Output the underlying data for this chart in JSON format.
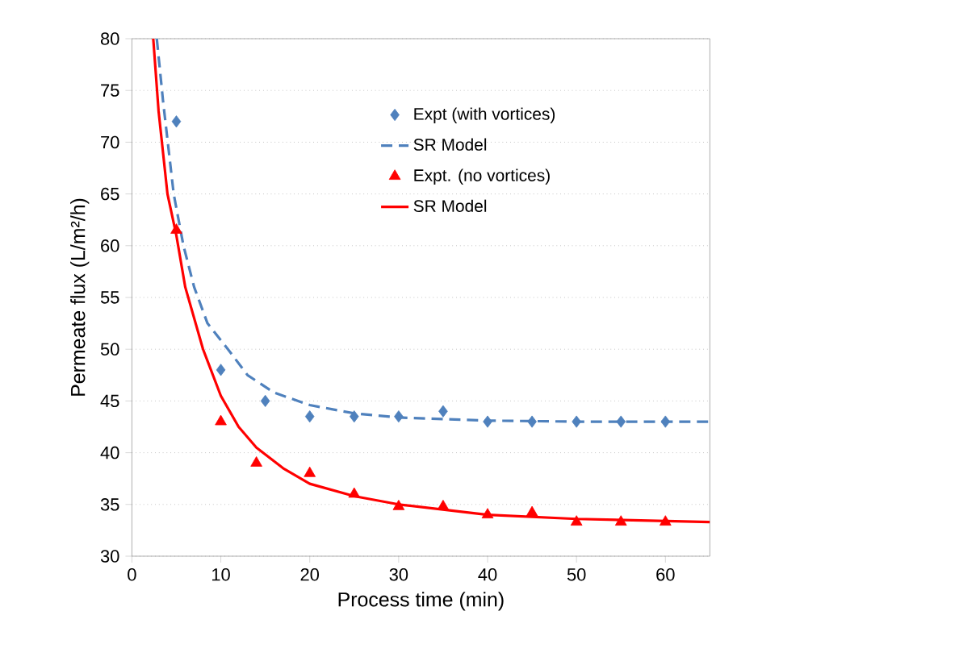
{
  "chart_data": {
    "type": "line",
    "xlabel": "Process time (min)",
    "ylabel": "Permeate flux (L/m²/h)",
    "xlim": [
      0,
      65
    ],
    "ylim": [
      30,
      80
    ],
    "xticks": [
      0,
      10,
      20,
      30,
      40,
      50,
      60
    ],
    "yticks": [
      30,
      35,
      40,
      45,
      50,
      55,
      60,
      65,
      70,
      75,
      80
    ],
    "grid": "y",
    "legend": "top right",
    "series": [
      {
        "name": "Expt (with vortices)",
        "type": "scatter",
        "marker": "diamond",
        "color": "#4f81bd",
        "x": [
          5,
          10,
          15,
          20,
          25,
          30,
          35,
          40,
          45,
          50,
          55,
          60
        ],
        "values": [
          72,
          48,
          45,
          43.5,
          43.5,
          43.5,
          44,
          43,
          43,
          43,
          43,
          43
        ]
      },
      {
        "name": "SR Model",
        "line_style": "dashed",
        "color": "#4f81bd",
        "x": [
          2.8,
          3.5,
          4.7,
          5.8,
          7,
          8.5,
          10.8,
          13,
          16,
          20,
          25,
          30,
          40,
          50,
          65
        ],
        "values": [
          80,
          74,
          65,
          60,
          56,
          52.5,
          50,
          47.5,
          45.8,
          44.6,
          43.8,
          43.4,
          43.1,
          43,
          43
        ]
      },
      {
        "name": "Expt. (no vortices)",
        "type": "scatter",
        "marker": "triangle",
        "color": "#ff0000",
        "x": [
          5,
          10,
          14,
          20,
          25,
          30,
          35,
          40,
          45,
          50,
          55,
          60
        ],
        "values": [
          61.5,
          43,
          39,
          38,
          36,
          34.8,
          34.8,
          34,
          34.2,
          33.3,
          33.3,
          33.3
        ]
      },
      {
        "name": "SR Model",
        "line_style": "solid",
        "color": "#ff0000",
        "x": [
          2.4,
          3,
          4,
          5,
          6,
          8,
          10,
          12,
          14,
          17,
          20,
          25,
          30,
          35,
          40,
          50,
          65
        ],
        "values": [
          80,
          73,
          65,
          61,
          56,
          50,
          45.5,
          42.5,
          40.5,
          38.5,
          37,
          35.8,
          35,
          34.5,
          34,
          33.6,
          33.3
        ]
      }
    ]
  }
}
